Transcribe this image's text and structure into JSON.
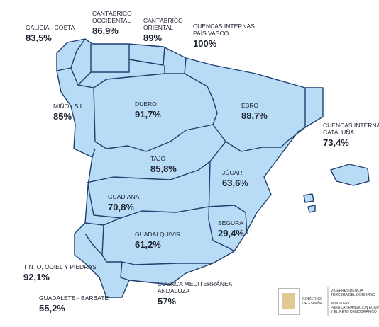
{
  "title": null,
  "basins": [
    {
      "name": [
        "GALICIA - COSTA"
      ],
      "value": "83,5%"
    },
    {
      "name": [
        "CANTÁBRICO",
        "OCCIDENTAL"
      ],
      "value": "86,9%"
    },
    {
      "name": [
        "CANTÁBRICO",
        "ORIENTAL"
      ],
      "value": "89%"
    },
    {
      "name": [
        "CUENCAS INTERNAS",
        "PAÍS VASCO"
      ],
      "value": "100%"
    },
    {
      "name": [
        "MIÑO - SIL"
      ],
      "value": "85%"
    },
    {
      "name": [
        "DUERO"
      ],
      "value": "91,7%"
    },
    {
      "name": [
        "EBRO"
      ],
      "value": "88,7%"
    },
    {
      "name": [
        "CUENCAS INTERNAS",
        "CATALUÑA"
      ],
      "value": "73,4%"
    },
    {
      "name": [
        "TAJO"
      ],
      "value": "85,8%"
    },
    {
      "name": [
        "JÚCAR"
      ],
      "value": "63,6%"
    },
    {
      "name": [
        "GUADIANA"
      ],
      "value": "70,8%"
    },
    {
      "name": [
        "SEGURA"
      ],
      "value": "29,4%"
    },
    {
      "name": [
        "GUADALQUIVIR"
      ],
      "value": "61,2%"
    },
    {
      "name": [
        "TINTO, ODIEL Y PIEDRAS"
      ],
      "value": "92,1%"
    },
    {
      "name": [
        "CUENCA MEDITERRÁNEA",
        "ANDALUZA"
      ],
      "value": "57%"
    },
    {
      "name": [
        "GUADALETE - BARBATE"
      ],
      "value": "55,2%"
    }
  ],
  "footer": {
    "government": [
      "GOBIERNO",
      "DE ESPAÑA"
    ],
    "ministry": [
      "VICEPRESIDENCIA",
      "TERCERA DEL GOBIERNO",
      "",
      "MINISTERIO",
      "PARA LA TRANSICIÓN ECOLÓGICA",
      "Y EL RETO DEMOGRÁFICO"
    ]
  }
}
